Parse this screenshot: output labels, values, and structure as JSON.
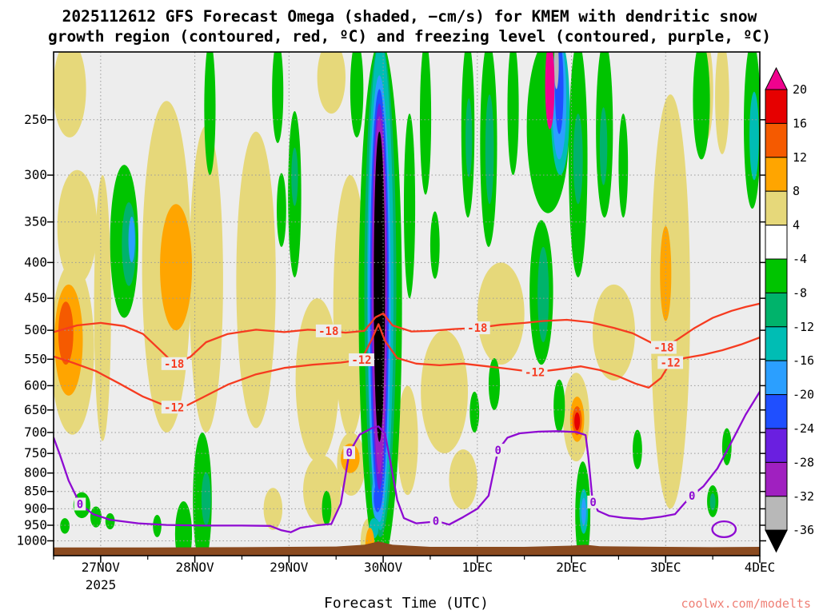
{
  "chart_data": {
    "type": "heatmap",
    "title_line1": "2025112612 GFS Forecast Omega (shaded, −cm/s) for KMEM with dendritic snow",
    "title_line2": "growth region (contoured, red, ºC) and freezing level (contoured, purple, ºC)",
    "xlabel": "Forecast Time (UTC)",
    "year_label": "2025",
    "watermark": "coolwx.com/modelts",
    "units": "-cm/s",
    "y_scale": "log",
    "grid": true,
    "day_range": 7.5,
    "p_range": [
      200,
      1050
    ],
    "x_ticks": [
      {
        "label": "27NOV",
        "day": 0.5
      },
      {
        "label": "28NOV",
        "day": 1.5
      },
      {
        "label": "29NOV",
        "day": 2.5
      },
      {
        "label": "30NOV",
        "day": 3.5
      },
      {
        "label": "1DEC",
        "day": 4.5
      },
      {
        "label": "2DEC",
        "day": 5.5
      },
      {
        "label": "3DEC",
        "day": 6.5
      },
      {
        "label": "4DEC",
        "day": 7.5
      }
    ],
    "y_ticks": [
      250,
      300,
      350,
      400,
      450,
      500,
      550,
      600,
      650,
      700,
      750,
      800,
      850,
      900,
      950,
      1000
    ],
    "plot_bg": "#ededed",
    "colorbar": {
      "labels": [
        "20",
        "16",
        "12",
        "8",
        "4",
        "-4",
        "-8",
        "-12",
        "-16",
        "-20",
        "-24",
        "-28",
        "-32",
        "-36"
      ],
      "cell_colors": [
        "#e60000",
        "#f55a00",
        "#ffa500",
        "#e6d87a",
        "#ffffff",
        "#00c400",
        "#00b36b",
        "#00bdb4",
        "#2b9fff",
        "#1f4fff",
        "#6a1fe0",
        "#a020c0",
        "#b8b8b8"
      ],
      "triangle_top": "#f0028e",
      "triangle_bottom": "#000000"
    },
    "band_colors": {
      "m": "#f0028e",
      "r": "#e60000",
      "o2": "#f55a00",
      "o": "#ffa500",
      "y": "#e6d87a",
      "w": "#ffffff",
      "g": "#00c400",
      "sg": "#00b36b",
      "t": "#00bdb4",
      "lb": "#2b9fff",
      "b": "#1f4fff",
      "v": "#6a1fe0",
      "p": "#a020c0",
      "gy": "#b8b8b8",
      "k": "#000000"
    },
    "shaded_cells": [
      [
        0.17,
        0.35,
        205,
        265,
        "y"
      ],
      [
        0.25,
        0.42,
        295,
        430,
        "y"
      ],
      [
        0.2,
        0.46,
        400,
        705,
        "y"
      ],
      [
        0.16,
        0.3,
        430,
        620,
        "o"
      ],
      [
        0.13,
        0.16,
        455,
        560,
        "o2"
      ],
      [
        0.52,
        0.18,
        300,
        720,
        "y"
      ],
      [
        1.2,
        0.52,
        235,
        700,
        "y"
      ],
      [
        1.3,
        0.34,
        330,
        500,
        "o"
      ],
      [
        1.62,
        0.36,
        255,
        700,
        "y"
      ],
      [
        2.15,
        0.42,
        260,
        690,
        "y"
      ],
      [
        2.33,
        0.2,
        840,
        965,
        "y"
      ],
      [
        2.8,
        0.46,
        450,
        770,
        "y"
      ],
      [
        2.85,
        0.4,
        755,
        950,
        "y"
      ],
      [
        2.95,
        0.3,
        200,
        245,
        "y"
      ],
      [
        3.15,
        0.36,
        300,
        710,
        "y"
      ],
      [
        3.16,
        0.3,
        700,
        862,
        "y"
      ],
      [
        3.15,
        0.2,
        726,
        800,
        "o"
      ],
      [
        3.35,
        0.18,
        928,
        1008,
        "y"
      ],
      [
        3.36,
        0.1,
        958,
        1008,
        "o"
      ],
      [
        3.76,
        0.22,
        600,
        860,
        "y"
      ],
      [
        4.15,
        0.5,
        500,
        750,
        "y"
      ],
      [
        4.35,
        0.3,
        740,
        902,
        "y"
      ],
      [
        4.75,
        0.5,
        400,
        560,
        "y"
      ],
      [
        5.55,
        0.28,
        575,
        770,
        "y"
      ],
      [
        5.95,
        0.45,
        430,
        590,
        "y"
      ],
      [
        6.55,
        0.42,
        230,
        900,
        "y"
      ],
      [
        6.5,
        0.12,
        355,
        485,
        "o"
      ],
      [
        6.93,
        0.15,
        205,
        268,
        "y"
      ],
      [
        7.1,
        0.15,
        205,
        280,
        "y"
      ],
      [
        5.56,
        0.15,
        622,
        722,
        "o"
      ],
      [
        5.56,
        0.1,
        642,
        706,
        "o2"
      ],
      [
        5.56,
        0.06,
        655,
        695,
        "r"
      ],
      [
        0.3,
        0.18,
        852,
        928,
        "g"
      ],
      [
        0.45,
        0.12,
        893,
        957,
        "g"
      ],
      [
        0.12,
        0.1,
        928,
        977,
        "g"
      ],
      [
        0.6,
        0.1,
        913,
        963,
        "g"
      ],
      [
        0.75,
        0.3,
        290,
        480,
        "g"
      ],
      [
        0.8,
        0.15,
        328,
        432,
        "sg"
      ],
      [
        0.83,
        0.07,
        344,
        400,
        "lb"
      ],
      [
        1.1,
        0.09,
        918,
        988,
        "g"
      ],
      [
        1.38,
        0.18,
        878,
        1000,
        "g"
      ],
      [
        1.58,
        0.2,
        700,
        1000,
        "g"
      ],
      [
        1.62,
        0.1,
        798,
        950,
        "sg"
      ],
      [
        1.66,
        0.12,
        210,
        300,
        "g"
      ],
      [
        2.38,
        0.12,
        205,
        270,
        "g"
      ],
      [
        2.42,
        0.1,
        298,
        380,
        "g"
      ],
      [
        2.56,
        0.14,
        243,
        420,
        "g"
      ],
      [
        2.56,
        0.07,
        274,
        332,
        "sg"
      ],
      [
        2.9,
        0.1,
        848,
        950,
        "g"
      ],
      [
        3.22,
        0.14,
        200,
        265,
        "g"
      ],
      [
        3.47,
        0.46,
        200,
        1008,
        "g"
      ],
      [
        3.47,
        0.34,
        205,
        988,
        "sg"
      ],
      [
        3.47,
        0.28,
        208,
        966,
        "t"
      ],
      [
        3.46,
        0.24,
        216,
        940,
        "lb"
      ],
      [
        3.46,
        0.2,
        226,
        902,
        "b"
      ],
      [
        3.46,
        0.17,
        237,
        845,
        "v"
      ],
      [
        3.46,
        0.15,
        247,
        802,
        "p"
      ],
      [
        3.46,
        0.12,
        260,
        722,
        "k"
      ],
      [
        3.44,
        0.12,
        798,
        932,
        "lb"
      ],
      [
        3.44,
        0.08,
        828,
        910,
        "b"
      ],
      [
        3.4,
        0.1,
        928,
        992,
        "t"
      ],
      [
        3.78,
        0.12,
        245,
        450,
        "g"
      ],
      [
        3.95,
        0.12,
        200,
        320,
        "g"
      ],
      [
        4.05,
        0.1,
        338,
        422,
        "g"
      ],
      [
        4.4,
        0.14,
        200,
        345,
        "g"
      ],
      [
        4.41,
        0.07,
        233,
        302,
        "sg"
      ],
      [
        4.47,
        0.1,
        612,
        700,
        "g"
      ],
      [
        4.62,
        0.18,
        200,
        380,
        "g"
      ],
      [
        4.63,
        0.09,
        230,
        330,
        "sg"
      ],
      [
        4.88,
        0.12,
        205,
        300,
        "g"
      ],
      [
        4.68,
        0.12,
        548,
        650,
        "g"
      ],
      [
        5.25,
        0.45,
        200,
        340,
        "g"
      ],
      [
        5.18,
        0.25,
        348,
        560,
        "g"
      ],
      [
        5.2,
        0.12,
        380,
        520,
        "sg"
      ],
      [
        5.27,
        0.1,
        200,
        258,
        "m"
      ],
      [
        5.38,
        0.2,
        200,
        300,
        "t"
      ],
      [
        5.37,
        0.15,
        200,
        285,
        "lb"
      ],
      [
        5.37,
        0.09,
        200,
        262,
        "b"
      ],
      [
        5.34,
        0.05,
        206,
        226,
        "gy"
      ],
      [
        5.57,
        0.2,
        200,
        420,
        "g"
      ],
      [
        5.57,
        0.1,
        245,
        330,
        "sg"
      ],
      [
        5.37,
        0.12,
        588,
        700,
        "g"
      ],
      [
        5.62,
        0.16,
        770,
        1000,
        "g"
      ],
      [
        5.63,
        0.09,
        843,
        977,
        "t"
      ],
      [
        5.63,
        0.05,
        868,
        950,
        "lb"
      ],
      [
        5.85,
        0.18,
        205,
        345,
        "g"
      ],
      [
        5.84,
        0.08,
        240,
        310,
        "sg"
      ],
      [
        6.05,
        0.1,
        245,
        345,
        "g"
      ],
      [
        6.2,
        0.1,
        694,
        790,
        "g"
      ],
      [
        6.88,
        0.18,
        200,
        285,
        "g"
      ],
      [
        7.0,
        0.12,
        833,
        925,
        "g"
      ],
      [
        7.0,
        0.06,
        855,
        905,
        "sg"
      ],
      [
        7.42,
        0.18,
        200,
        335,
        "g"
      ],
      [
        7.44,
        0.1,
        228,
        305,
        "t"
      ],
      [
        7.15,
        0.1,
        690,
        780,
        "g"
      ]
    ],
    "contour_colors": {
      "red": "#f63b20",
      "purple": "#8e0ad2"
    },
    "red_contours": [
      {
        "value": "-18",
        "points": [
          [
            0,
            503
          ],
          [
            0.25,
            492
          ],
          [
            0.5,
            488
          ],
          [
            0.75,
            493
          ],
          [
            0.95,
            506
          ],
          [
            1.12,
            532
          ],
          [
            1.28,
            558
          ],
          [
            1.45,
            546
          ],
          [
            1.62,
            520
          ],
          [
            1.85,
            506
          ],
          [
            2.15,
            499
          ],
          [
            2.45,
            503
          ],
          [
            2.7,
            499
          ],
          [
            2.92,
            501
          ],
          [
            3.1,
            504
          ],
          [
            3.3,
            501
          ],
          [
            3.42,
            479
          ],
          [
            3.5,
            473
          ],
          [
            3.6,
            492
          ],
          [
            3.8,
            502
          ],
          [
            4.0,
            501
          ],
          [
            4.25,
            498
          ],
          [
            4.5,
            496
          ],
          [
            4.75,
            491
          ],
          [
            5.0,
            488
          ],
          [
            5.2,
            485
          ],
          [
            5.45,
            483
          ],
          [
            5.7,
            487
          ],
          [
            5.95,
            496
          ],
          [
            6.15,
            505
          ],
          [
            6.35,
            521
          ],
          [
            6.48,
            529
          ],
          [
            6.62,
            516
          ],
          [
            6.8,
            497
          ],
          [
            7.0,
            480
          ],
          [
            7.2,
            469
          ],
          [
            7.35,
            463
          ],
          [
            7.5,
            458
          ]
        ],
        "labels": [
          [
            1.28,
            558
          ],
          [
            2.92,
            501
          ],
          [
            4.5,
            496
          ],
          [
            6.48,
            529
          ]
        ]
      },
      {
        "value": "-12",
        "points": [
          [
            0,
            545
          ],
          [
            0.2,
            556
          ],
          [
            0.45,
            572
          ],
          [
            0.7,
            596
          ],
          [
            0.95,
            622
          ],
          [
            1.15,
            638
          ],
          [
            1.28,
            644
          ],
          [
            1.42,
            640
          ],
          [
            1.6,
            622
          ],
          [
            1.85,
            598
          ],
          [
            2.15,
            578
          ],
          [
            2.45,
            566
          ],
          [
            2.75,
            560
          ],
          [
            3.05,
            556
          ],
          [
            3.27,
            551
          ],
          [
            3.38,
            515
          ],
          [
            3.45,
            490
          ],
          [
            3.52,
            518
          ],
          [
            3.65,
            548
          ],
          [
            3.85,
            558
          ],
          [
            4.1,
            561
          ],
          [
            4.35,
            558
          ],
          [
            4.6,
            563
          ],
          [
            4.85,
            568
          ],
          [
            5.11,
            574
          ],
          [
            5.35,
            569
          ],
          [
            5.6,
            563
          ],
          [
            5.8,
            570
          ],
          [
            6.0,
            582
          ],
          [
            6.18,
            596
          ],
          [
            6.32,
            604
          ],
          [
            6.45,
            585
          ],
          [
            6.55,
            556
          ],
          [
            6.7,
            548
          ],
          [
            6.9,
            542
          ],
          [
            7.1,
            534
          ],
          [
            7.3,
            524
          ],
          [
            7.5,
            512
          ]
        ],
        "labels": [
          [
            1.28,
            644
          ],
          [
            3.27,
            551
          ],
          [
            5.11,
            574
          ],
          [
            6.55,
            556
          ]
        ]
      }
    ],
    "purple_contours": [
      {
        "value": "0",
        "points": [
          [
            0,
            712
          ],
          [
            0.07,
            755
          ],
          [
            0.16,
            820
          ],
          [
            0.28,
            886
          ],
          [
            0.42,
            916
          ],
          [
            0.6,
            933
          ],
          [
            0.9,
            944
          ],
          [
            1.2,
            949
          ],
          [
            1.6,
            951
          ],
          [
            2.0,
            951
          ],
          [
            2.3,
            952
          ],
          [
            2.42,
            966
          ],
          [
            2.52,
            972
          ],
          [
            2.62,
            958
          ],
          [
            2.8,
            950
          ],
          [
            2.95,
            946
          ],
          [
            3.05,
            885
          ],
          [
            3.14,
            748
          ],
          [
            3.25,
            705
          ],
          [
            3.38,
            690
          ],
          [
            3.45,
            686
          ],
          [
            3.52,
            703
          ],
          [
            3.58,
            775
          ],
          [
            3.65,
            875
          ],
          [
            3.72,
            928
          ],
          [
            3.85,
            944
          ],
          [
            4.0,
            940
          ],
          [
            4.06,
            936
          ],
          [
            4.2,
            948
          ],
          [
            4.35,
            925
          ],
          [
            4.5,
            900
          ],
          [
            4.62,
            862
          ],
          [
            4.72,
            742
          ],
          [
            4.82,
            712
          ],
          [
            4.95,
            702
          ],
          [
            5.15,
            698
          ],
          [
            5.35,
            697
          ],
          [
            5.55,
            699
          ],
          [
            5.65,
            706
          ],
          [
            5.68,
            760
          ],
          [
            5.72,
            866
          ],
          [
            5.78,
            906
          ],
          [
            5.9,
            921
          ],
          [
            6.05,
            927
          ],
          [
            6.25,
            931
          ],
          [
            6.45,
            924
          ],
          [
            6.6,
            916
          ],
          [
            6.7,
            884
          ],
          [
            6.78,
            862
          ],
          [
            6.9,
            836
          ],
          [
            7.05,
            788
          ],
          [
            7.2,
            722
          ],
          [
            7.35,
            660
          ],
          [
            7.5,
            612
          ]
        ],
        "labels": [
          [
            0.28,
            886
          ],
          [
            3.14,
            748
          ],
          [
            4.06,
            936
          ],
          [
            4.72,
            742
          ],
          [
            5.73,
            880
          ],
          [
            6.78,
            862
          ]
        ]
      }
    ],
    "purple_loops": [
      [
        7.12,
        0.25,
        938,
        988
      ]
    ],
    "terrain": {
      "color": "#8a4a1f",
      "points": [
        [
          0,
          1022
        ],
        [
          1,
          1022
        ],
        [
          2,
          1021
        ],
        [
          3,
          1019
        ],
        [
          3.3,
          1013
        ],
        [
          3.45,
          1002
        ],
        [
          3.6,
          1013
        ],
        [
          4,
          1020
        ],
        [
          5,
          1020
        ],
        [
          5.5,
          1016
        ],
        [
          5.65,
          1013
        ],
        [
          5.8,
          1018
        ],
        [
          6.5,
          1020
        ],
        [
          7,
          1021
        ],
        [
          7.5,
          1020
        ]
      ]
    }
  }
}
